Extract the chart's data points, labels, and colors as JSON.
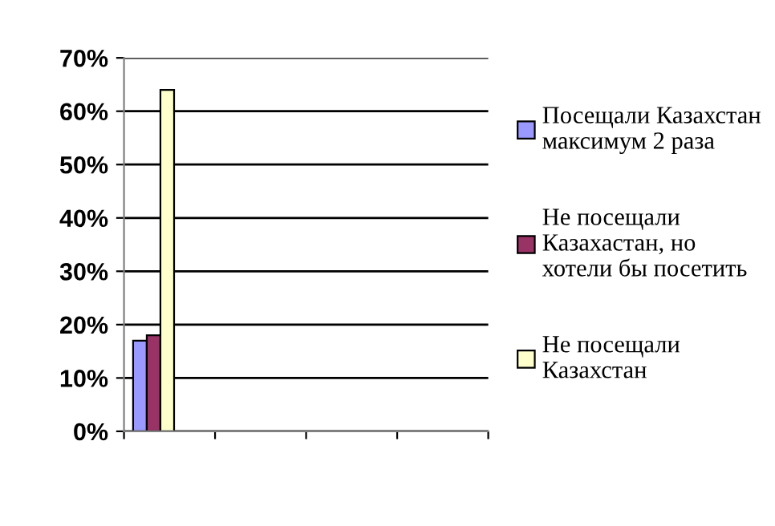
{
  "chart_data": {
    "type": "bar",
    "categories": [
      null,
      null,
      null,
      null
    ],
    "series": [
      {
        "name": "Посещали Казахстан максимум 2 раза",
        "color": "#9999ff",
        "values": [
          17,
          null,
          null,
          null
        ]
      },
      {
        "name": "Не посещали Казахастан, но хотели бы посетить",
        "color": "#993366",
        "values": [
          18,
          null,
          null,
          null
        ]
      },
      {
        "name": "Не посещали Казахстан",
        "color": "#ffffcc",
        "values": [
          64,
          null,
          null,
          null
        ]
      }
    ],
    "ylim": [
      0,
      70
    ],
    "yticks": [
      {
        "value": 0,
        "label": "0%"
      },
      {
        "value": 10,
        "label": "10%"
      },
      {
        "value": 20,
        "label": "20%"
      },
      {
        "value": 30,
        "label": "30%"
      },
      {
        "value": 40,
        "label": "40%"
      },
      {
        "value": 50,
        "label": "50%"
      },
      {
        "value": 60,
        "label": "60%"
      },
      {
        "value": 70,
        "label": "70%"
      }
    ],
    "grid": "y",
    "legend": "right"
  }
}
